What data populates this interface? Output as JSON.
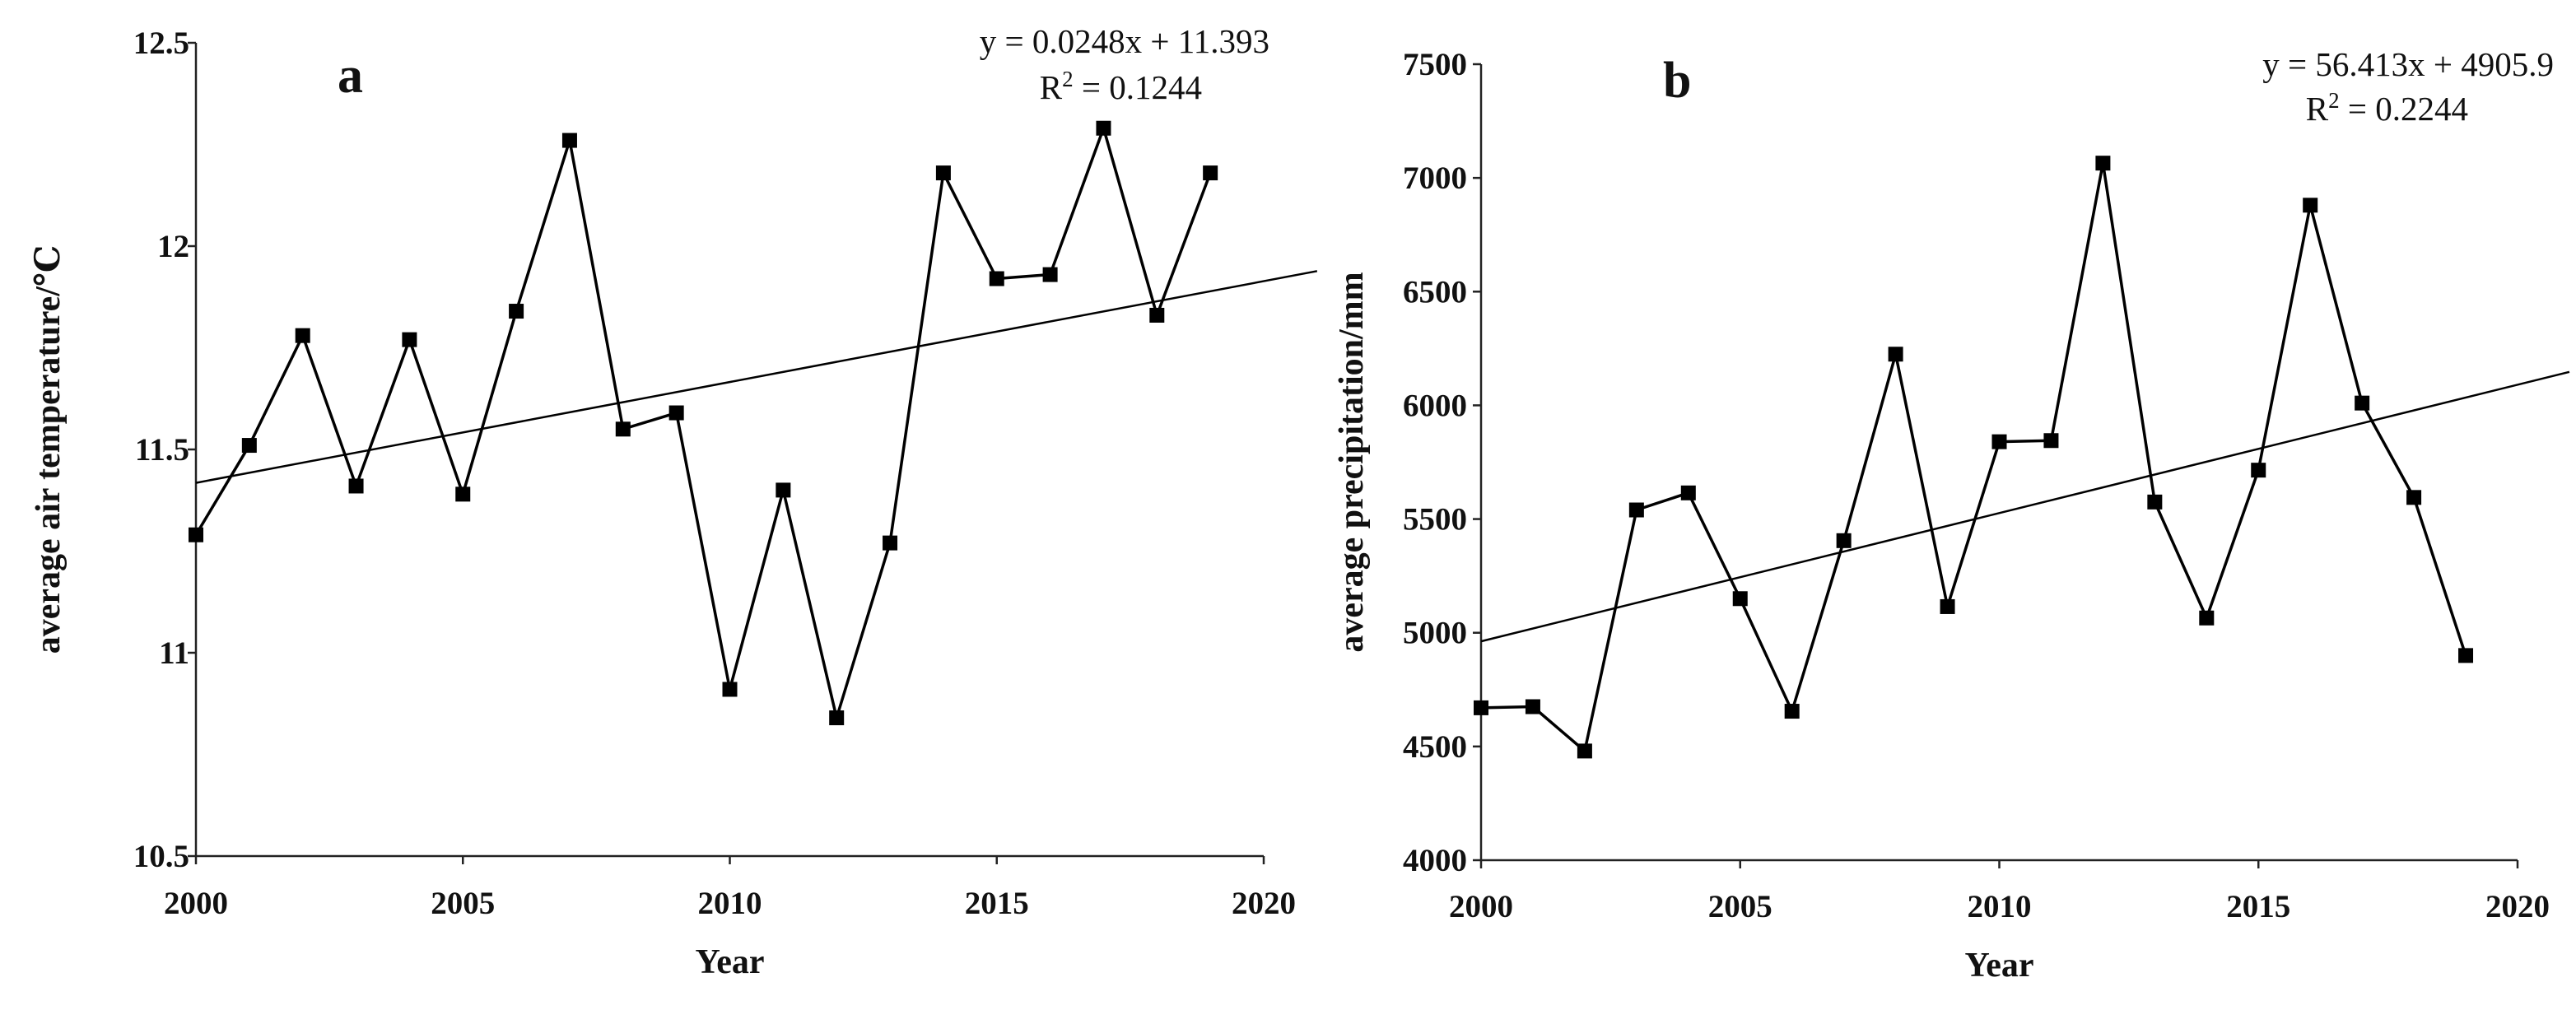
{
  "chart_data": [
    {
      "type": "line",
      "panel_label": "a",
      "xlabel": "Year",
      "ylabel": "average air temperature/℃",
      "xlim": [
        2000,
        2020
      ],
      "ylim": [
        10.5,
        12.5
      ],
      "xticks": [
        2000,
        2005,
        2010,
        2015,
        2020
      ],
      "xtick_labels": [
        "2000",
        "2005",
        "2010",
        "2015",
        "2020"
      ],
      "yticks": [
        10.5,
        11,
        11.5,
        12,
        12.5
      ],
      "ytick_labels": [
        "10.5",
        "11",
        "11.5",
        "12",
        "12.5"
      ],
      "grid": false,
      "series": [
        {
          "name": "average air temperature",
          "marker": "square",
          "x": [
            2000,
            2001,
            2002,
            2003,
            2004,
            2005,
            2006,
            2007,
            2008,
            2009,
            2010,
            2011,
            2012,
            2013,
            2014,
            2015,
            2016,
            2017,
            2018,
            2019
          ],
          "y": [
            11.29,
            11.51,
            11.78,
            11.41,
            11.77,
            11.39,
            11.84,
            12.26,
            11.55,
            11.59,
            10.91,
            11.4,
            10.84,
            11.27,
            12.18,
            11.92,
            11.93,
            12.29,
            11.83,
            12.18
          ]
        }
      ],
      "trendline": {
        "slope": 0.0248,
        "intercept": 11.393,
        "x_start": 2000,
        "x_end": 2021
      },
      "annotation": {
        "equation": "y = 0.0248x + 11.393",
        "r2_prefix": "R",
        "r2_sup": "2",
        "r2_suffix": " = 0.1244"
      }
    },
    {
      "type": "line",
      "panel_label": "b",
      "xlabel": "Year",
      "ylabel": "average precipitation/mm",
      "xlim": [
        2000,
        2020
      ],
      "ylim": [
        4000,
        7500
      ],
      "xticks": [
        2000,
        2005,
        2010,
        2015,
        2020
      ],
      "xtick_labels": [
        "2000",
        "2005",
        "2010",
        "2015",
        "2020"
      ],
      "yticks": [
        4000,
        4500,
        5000,
        5500,
        6000,
        6500,
        7000,
        7500
      ],
      "ytick_labels": [
        "4000",
        "4500",
        "5000",
        "5500",
        "6000",
        "6500",
        "7000",
        "7500"
      ],
      "grid": false,
      "series": [
        {
          "name": "average precipitation",
          "marker": "square",
          "x": [
            2000,
            2001,
            2002,
            2003,
            2004,
            2005,
            2006,
            2007,
            2008,
            2009,
            2010,
            2011,
            2012,
            2013,
            2014,
            2015,
            2016,
            2017,
            2018,
            2019
          ],
          "y": [
            4670,
            4675,
            4480,
            5540,
            5615,
            5150,
            4655,
            5405,
            6225,
            5115,
            5840,
            5845,
            7065,
            5575,
            5065,
            5715,
            6880,
            6010,
            5595,
            4900
          ]
        }
      ],
      "trendline": {
        "slope": 56.413,
        "intercept": 4905.9,
        "x_start": 2000,
        "x_end": 2021
      },
      "annotation": {
        "equation": "y = 56.413x + 4905.9",
        "r2_prefix": "R",
        "r2_sup": "2",
        "r2_suffix": " = 0.2244"
      }
    }
  ]
}
